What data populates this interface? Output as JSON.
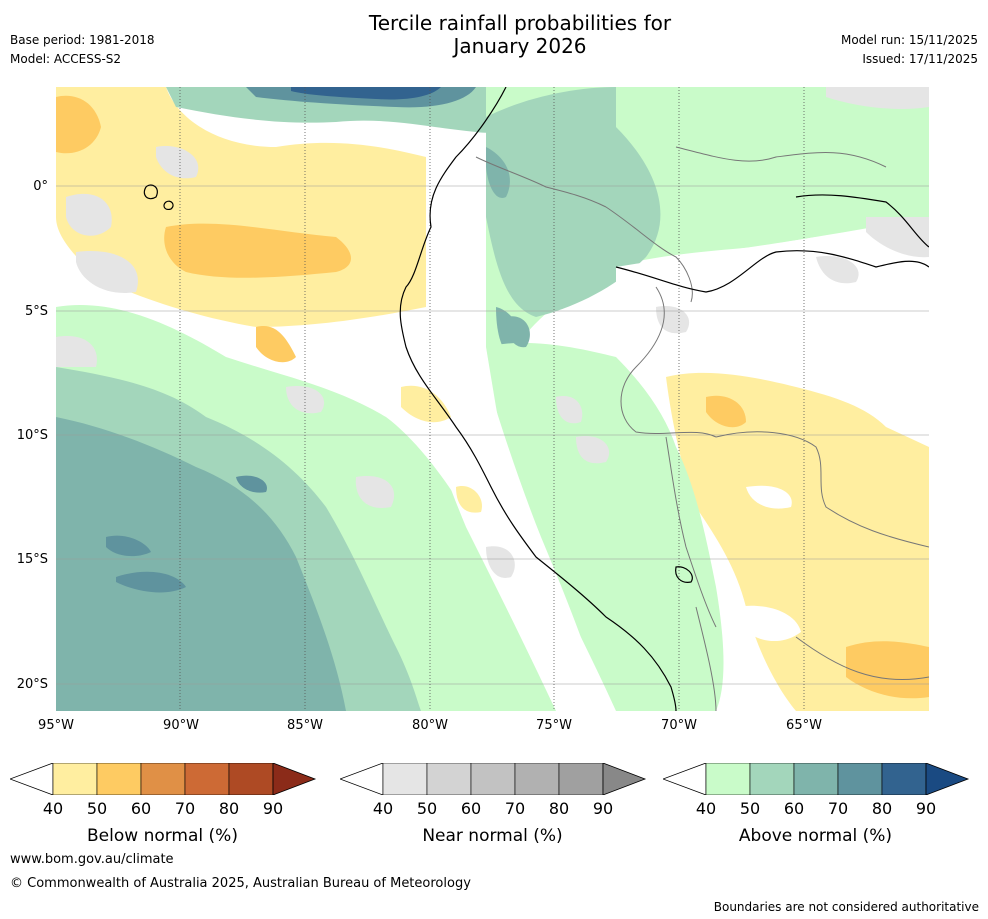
{
  "header": {
    "title_line1": "Tercile rainfall probabilities for",
    "title_line2": "January 2026",
    "base_period": "Base period: 1981-2018",
    "model": "Model: ACCESS-S2",
    "model_run": "Model run: 15/11/2025",
    "issued": "Issued: 17/11/2025"
  },
  "map": {
    "region": "Western South America and eastern Pacific",
    "lat_labels": [
      "0°",
      "5°S",
      "10°S",
      "15°S",
      "20°S"
    ],
    "lon_labels": [
      "95°W",
      "90°W",
      "85°W",
      "80°W",
      "75°W",
      "70°W",
      "65°W"
    ],
    "lat_values": [
      0,
      -5,
      -10,
      -15,
      -20
    ],
    "lon_values": [
      -95,
      -90,
      -85,
      -80,
      -75,
      -70,
      -65
    ]
  },
  "colorbars": [
    {
      "label": "Below normal (%)",
      "ticks": [
        "40",
        "50",
        "60",
        "70",
        "80",
        "90"
      ],
      "colors": [
        "#ffeea0",
        "#fecb62",
        "#e09046",
        "#cd6a35",
        "#ae4a24",
        "#8b2b19"
      ]
    },
    {
      "label": "Near normal (%)",
      "ticks": [
        "40",
        "50",
        "60",
        "70",
        "80",
        "90"
      ],
      "colors": [
        "#e5e5e5",
        "#d3d3d3",
        "#c2c2c2",
        "#b1b1b1",
        "#a0a0a0",
        "#888888"
      ]
    },
    {
      "label": "Above normal (%)",
      "ticks": [
        "40",
        "50",
        "60",
        "70",
        "80",
        "90"
      ],
      "colors": [
        "#c9fbc9",
        "#a3d6bb",
        "#7fb4ab",
        "#5f939e",
        "#32638f",
        "#1a4a82"
      ]
    }
  ],
  "footer": {
    "website": "www.bom.gov.au/climate",
    "copyright": "© Commonwealth of Australia 2025, Australian Bureau of Meteorology",
    "disclaimer": "Boundaries are not considered authoritative"
  }
}
